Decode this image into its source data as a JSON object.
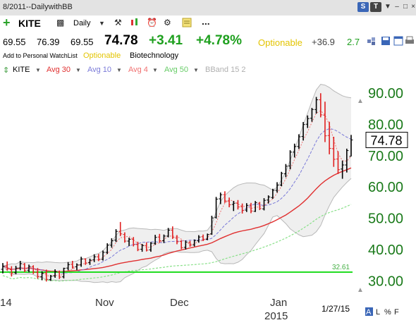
{
  "window": {
    "title": "8/2011--DailywithBB",
    "buttons": [
      "S",
      "T",
      "▼",
      "–",
      "□",
      "×"
    ]
  },
  "toolbar": {
    "symbol": "KITE",
    "period": "Daily",
    "more": "..."
  },
  "quote": {
    "open": "69.55",
    "high": "76.39",
    "low": "69.55",
    "last": "74.78",
    "change": "+3.41",
    "change_pct": "+4.78%",
    "optionable": "Optionable",
    "extra1": "+36.9",
    "extra2": "2.7"
  },
  "subline": {
    "add_link": "Add to Personal WatchList",
    "optionable": "Optionable",
    "industry": "Biotechnology"
  },
  "legend": {
    "symbol": "KITE",
    "avg30": "Avg 30",
    "avg10": "Avg 10",
    "avg4": "Avg 4",
    "avg50": "Avg 50",
    "bband": "BBand 15 2"
  },
  "colors": {
    "up_bar": "#000000",
    "down_bar": "#e02020",
    "avg30": "#e03030",
    "avg10": "#7a7ad8",
    "avg4": "#f07070",
    "avg50": "#88e088",
    "bband_fill": "#efefef",
    "bband_line": "#b8b8b8",
    "hline": "#22dd22",
    "price_axis": "#1a7a1a"
  },
  "chart_data": {
    "type": "line",
    "subtype": "ohlc-bars",
    "y_ticks": [
      "90.00",
      "80.00",
      "70.00",
      "60.00",
      "50.00",
      "40.00",
      "30.00"
    ],
    "ylim": [
      26.3,
      94.7
    ],
    "x_labels": [
      "14",
      "Nov",
      "Dec",
      "Jan",
      "2015"
    ],
    "last_price_label": "74.78",
    "hline": {
      "value": 32.61,
      "label": "32.61"
    },
    "date_label": "1/27/15",
    "footer_buttons": [
      "A",
      "L",
      "%",
      "F"
    ],
    "grid": false,
    "ohlc": [
      [
        33.5,
        35.5,
        32.2,
        34.5
      ],
      [
        34.6,
        36.0,
        33.1,
        33.6
      ],
      [
        33.4,
        34.5,
        31.2,
        32.3
      ],
      [
        32.4,
        34.6,
        31.9,
        33.9
      ],
      [
        33.9,
        36.2,
        33.2,
        35.3
      ],
      [
        35.1,
        35.5,
        32.6,
        33.1
      ],
      [
        33.2,
        35.0,
        32.5,
        34.4
      ],
      [
        34.3,
        34.8,
        32.0,
        32.6
      ],
      [
        32.5,
        33.9,
        30.5,
        31.2
      ],
      [
        31.1,
        32.9,
        30.0,
        32.2
      ],
      [
        32.3,
        33.4,
        29.6,
        30.3
      ],
      [
        30.2,
        31.7,
        29.8,
        31.3
      ],
      [
        31.4,
        33.5,
        30.8,
        32.7
      ],
      [
        32.6,
        33.1,
        30.4,
        31.0
      ],
      [
        31.1,
        34.0,
        30.6,
        33.8
      ],
      [
        33.9,
        35.8,
        33.2,
        35.0
      ],
      [
        35.1,
        36.2,
        33.7,
        34.2
      ],
      [
        34.3,
        35.4,
        33.2,
        34.9
      ],
      [
        34.9,
        37.5,
        34.3,
        36.8
      ],
      [
        36.8,
        37.0,
        34.9,
        35.5
      ],
      [
        35.6,
        36.9,
        34.9,
        36.4
      ],
      [
        36.5,
        38.3,
        35.8,
        37.5
      ],
      [
        37.5,
        38.4,
        36.1,
        36.6
      ],
      [
        36.7,
        39.5,
        36.3,
        38.9
      ],
      [
        38.9,
        41.8,
        38.4,
        41.2
      ],
      [
        41.2,
        43.4,
        40.4,
        42.6
      ],
      [
        42.8,
        46.3,
        42.2,
        45.6
      ],
      [
        45.6,
        48.6,
        44.1,
        44.8
      ],
      [
        44.6,
        45.3,
        42.0,
        42.5
      ],
      [
        42.5,
        43.6,
        40.9,
        43.1
      ],
      [
        43.1,
        43.8,
        40.8,
        41.4
      ],
      [
        41.4,
        42.3,
        39.3,
        39.8
      ],
      [
        39.9,
        41.6,
        39.1,
        41.1
      ],
      [
        41.1,
        42.1,
        39.2,
        39.6
      ],
      [
        39.7,
        42.2,
        39.1,
        41.8
      ],
      [
        41.8,
        44.5,
        41.3,
        43.7
      ],
      [
        43.8,
        44.8,
        42.0,
        42.6
      ],
      [
        42.6,
        44.6,
        41.9,
        44.1
      ],
      [
        44.1,
        46.7,
        43.7,
        46.0
      ],
      [
        46.0,
        47.2,
        43.2,
        43.7
      ],
      [
        43.5,
        44.4,
        41.5,
        42.3
      ],
      [
        42.4,
        42.8,
        39.9,
        40.4
      ],
      [
        40.5,
        42.7,
        39.8,
        42.2
      ],
      [
        42.1,
        42.6,
        40.7,
        41.2
      ],
      [
        41.3,
        43.0,
        40.8,
        42.7
      ],
      [
        42.6,
        44.4,
        42.0,
        43.8
      ],
      [
        43.9,
        44.6,
        42.5,
        43.1
      ],
      [
        43.1,
        44.9,
        42.8,
        44.6
      ],
      [
        44.8,
        50.6,
        44.5,
        49.9
      ],
      [
        50.1,
        56.6,
        49.7,
        55.9
      ],
      [
        56.0,
        58.0,
        54.3,
        57.3
      ],
      [
        57.3,
        58.4,
        54.7,
        55.3
      ],
      [
        55.3,
        56.4,
        53.3,
        54.1
      ],
      [
        54.2,
        55.3,
        52.1,
        54.6
      ],
      [
        54.6,
        55.6,
        52.6,
        53.4
      ],
      [
        53.5,
        54.5,
        51.3,
        52.3
      ],
      [
        52.4,
        54.6,
        51.8,
        53.9
      ],
      [
        54.0,
        54.7,
        51.4,
        52.1
      ],
      [
        52.0,
        55.3,
        51.8,
        54.8
      ],
      [
        54.6,
        55.0,
        52.4,
        52.9
      ],
      [
        52.8,
        56.2,
        52.3,
        55.5
      ],
      [
        55.6,
        57.1,
        54.5,
        56.6
      ],
      [
        56.4,
        59.2,
        56.0,
        58.7
      ],
      [
        58.7,
        61.3,
        58.0,
        60.4
      ],
      [
        60.4,
        64.6,
        60.0,
        64.1
      ],
      [
        64.0,
        67.1,
        62.9,
        66.4
      ],
      [
        66.5,
        71.5,
        65.4,
        70.9
      ],
      [
        70.9,
        73.6,
        69.2,
        72.7
      ],
      [
        72.7,
        76.6,
        71.9,
        75.8
      ],
      [
        75.9,
        80.5,
        74.6,
        79.7
      ],
      [
        79.8,
        82.6,
        78.6,
        81.6
      ],
      [
        81.7,
        85.0,
        80.6,
        84.5
      ],
      [
        84.5,
        88.5,
        83.2,
        87.6
      ],
      [
        87.6,
        89.7,
        82.0,
        82.8
      ],
      [
        82.7,
        87.0,
        74.1,
        76.1
      ],
      [
        76.2,
        80.6,
        70.2,
        72.1
      ],
      [
        72.0,
        75.8,
        66.2,
        68.6
      ],
      [
        68.7,
        71.2,
        63.9,
        65.3
      ],
      [
        65.5,
        68.2,
        62.4,
        66.8
      ],
      [
        66.8,
        72.0,
        64.4,
        71.4
      ],
      [
        69.55,
        76.39,
        69.55,
        74.78
      ]
    ]
  }
}
